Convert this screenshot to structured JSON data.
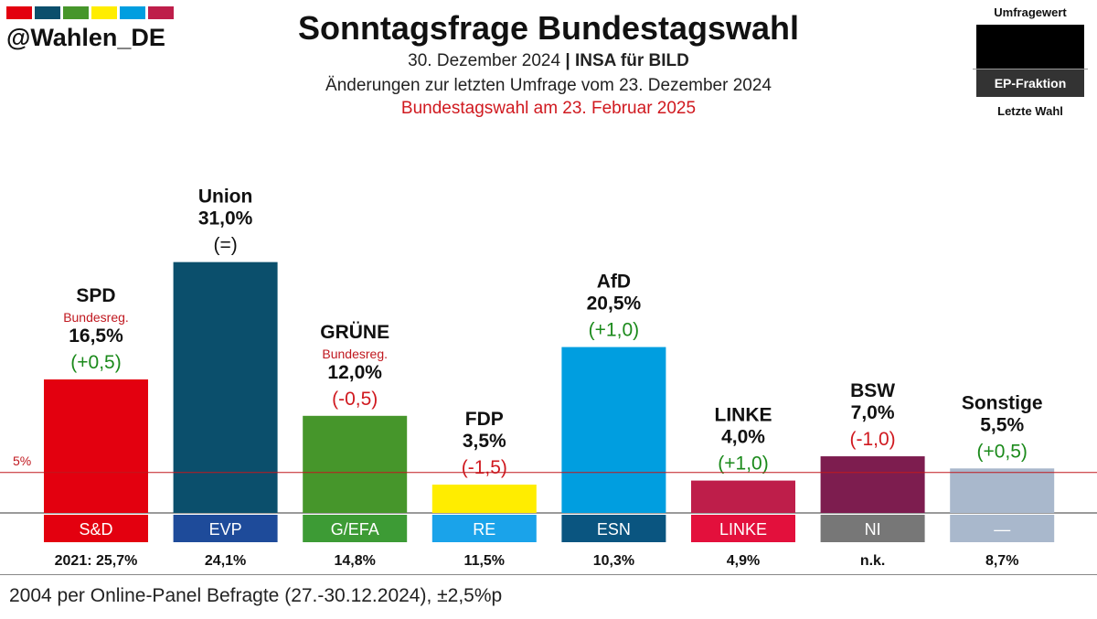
{
  "header": {
    "handle": "@Wahlen_DE",
    "title": "Sonntagsfrage Bundestagswahl",
    "date": "30. Dezember 2024",
    "separator": "|",
    "source": "INSA für BILD",
    "changes": "Änderungen zur letzten Umfrage vom 23. Dezember 2024",
    "election": "Bundestagswahl am 23. Februar 2025",
    "stripe_colors": [
      "#e3000f",
      "#0b4f6c",
      "#46962b",
      "#ffed00",
      "#009ee0",
      "#be1e4a"
    ]
  },
  "legend": {
    "top": "Umfragewert",
    "middle": "EP-Fraktion",
    "bottom": "Letzte Wahl"
  },
  "chart_data": {
    "type": "bar",
    "title": "Sonntagsfrage Bundestagswahl",
    "ylim": [
      0,
      35
    ],
    "threshold": {
      "value": 5,
      "label": "5%"
    },
    "series": [
      {
        "name": "SPD",
        "value": 16.5,
        "value_label": "16,5%",
        "change": "(+0,5)",
        "change_sign": "up",
        "tag": "Bundesreg.",
        "color": "#e3000f",
        "group": "S&D",
        "group_color": "#e3000f",
        "last": "2021: 25,7%"
      },
      {
        "name": "Union",
        "value": 31.0,
        "value_label": "31,0%",
        "change": "(=)",
        "change_sign": "none",
        "tag": "",
        "color": "#0b4f6c",
        "group": "EVP",
        "group_color": "#1e4b9a",
        "last": "24,1%"
      },
      {
        "name": "GRÜNE",
        "value": 12.0,
        "value_label": "12,0%",
        "change": "(-0,5)",
        "change_sign": "down",
        "tag": "Bundesreg.",
        "color": "#46962b",
        "group": "G/EFA",
        "group_color": "#3d9b35",
        "last": "14,8%"
      },
      {
        "name": "FDP",
        "value": 3.5,
        "value_label": "3,5%",
        "change": "(-1,5)",
        "change_sign": "down",
        "tag": "",
        "color": "#ffed00",
        "group": "RE",
        "group_color": "#1aa3ea",
        "last": "11,5%"
      },
      {
        "name": "AfD",
        "value": 20.5,
        "value_label": "20,5%",
        "change": "(+1,0)",
        "change_sign": "up",
        "tag": "",
        "color": "#009ee0",
        "group": "ESN",
        "group_color": "#0a5580",
        "last": "10,3%"
      },
      {
        "name": "LINKE",
        "value": 4.0,
        "value_label": "4,0%",
        "change": "(+1,0)",
        "change_sign": "up",
        "tag": "",
        "color": "#be1e4a",
        "group": "LINKE",
        "group_color": "#e3103c",
        "last": "4,9%"
      },
      {
        "name": "BSW",
        "value": 7.0,
        "value_label": "7,0%",
        "change": "(-1,0)",
        "change_sign": "down",
        "tag": "",
        "color": "#7d1d4f",
        "group": "NI",
        "group_color": "#777777",
        "last": "n.k."
      },
      {
        "name": "Sonstige",
        "value": 5.5,
        "value_label": "5,5%",
        "change": "(+0,5)",
        "change_sign": "up",
        "tag": "",
        "color": "#a9b8cc",
        "group": "—",
        "group_color": "#a9b8cc",
        "last": "8,7%"
      }
    ]
  },
  "footer": {
    "note": "2004 per Online-Panel Befragte (27.-30.12.2024), ±2,5%p"
  }
}
